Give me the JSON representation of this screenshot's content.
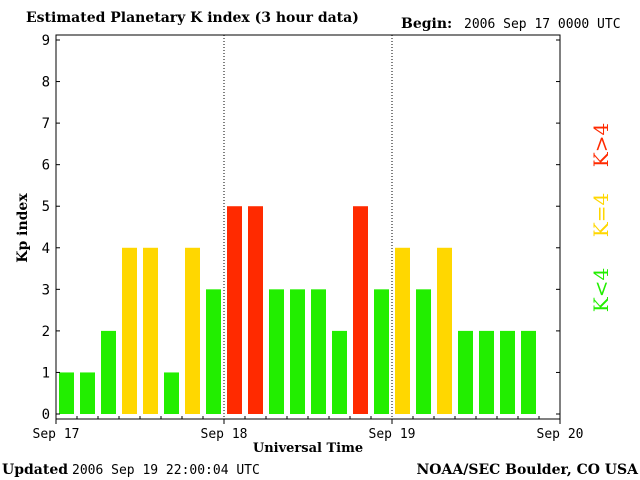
{
  "header": {
    "title": "Estimated Planetary K index (3 hour data)",
    "begin_label": "Begin:",
    "begin_value": "2006 Sep 17 0000 UTC"
  },
  "footer": {
    "updated_label": "Updated",
    "updated_value": "2006 Sep 19 22:00:04 UTC",
    "credit": "NOAA/SEC Boulder, CO USA"
  },
  "legend": {
    "low_label": "K<4",
    "mid_label": "K=4",
    "high_label": "K>4"
  },
  "colors": {
    "low": "#22ee00",
    "mid": "#ffd700",
    "high": "#ff2a00"
  },
  "chart_data": {
    "type": "bar",
    "title": "Estimated Planetary K index (3 hour data)",
    "xlabel": "Universal Time",
    "ylabel": "Kp index",
    "ylim": [
      0,
      9
    ],
    "yticks": [
      "0",
      "1",
      "2",
      "3",
      "4",
      "5",
      "6",
      "7",
      "8",
      "9"
    ],
    "xticks": [
      "Sep 17",
      "Sep 18",
      "Sep 19",
      "Sep 20"
    ],
    "day_dividers": [
      "Sep 18",
      "Sep 19"
    ],
    "interval_hours": 3,
    "series": [
      {
        "values": [
          1,
          1,
          2,
          4,
          4,
          1,
          4,
          3,
          5,
          5,
          3,
          3,
          3,
          2,
          5,
          3,
          4,
          3,
          4,
          2,
          2,
          2,
          2
        ]
      }
    ],
    "color_rule": {
      "below_4": "low",
      "equal_4": "mid",
      "above_4": "high"
    },
    "grid": false
  }
}
